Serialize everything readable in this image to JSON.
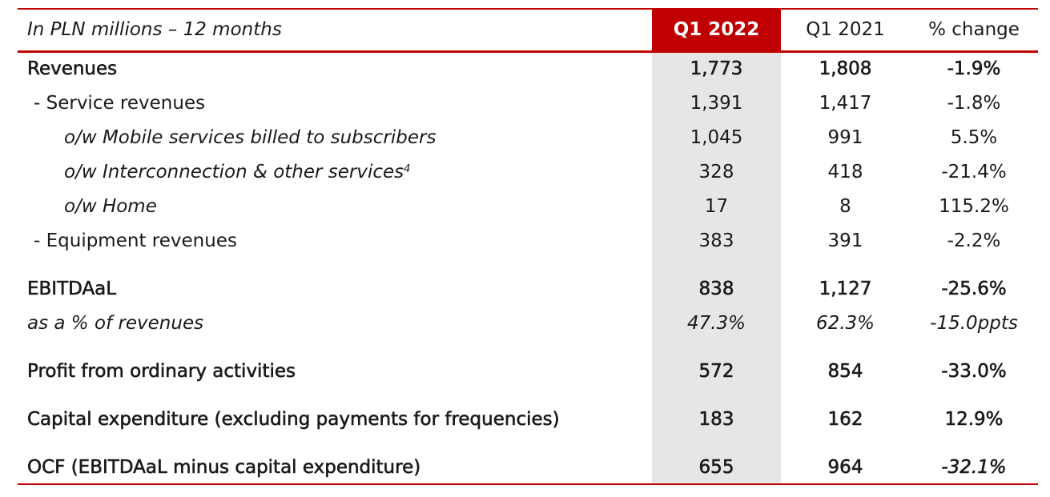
{
  "header": {
    "label": "In PLN millions – 12 months",
    "col1": "Q1 2022",
    "col2": "Q1 2021",
    "col3": "% change"
  },
  "rows": [
    {
      "label": "Revenues",
      "c1": "1,773",
      "c2": "1,808",
      "c3": "-1.9%"
    },
    {
      "label": "- Service revenues",
      "c1": "1,391",
      "c2": "1,417",
      "c3": "-1.8%"
    },
    {
      "label": "o/w Mobile services billed to subscribers",
      "c1": "1,045",
      "c2": "991",
      "c3": "5.5%"
    },
    {
      "label": "o/w Interconnection & other services",
      "sup": "4",
      "c1": "328",
      "c2": "418",
      "c3": "-21.4%"
    },
    {
      "label": "o/w Home",
      "c1": "17",
      "c2": "8",
      "c3": "115.2%"
    },
    {
      "label": "- Equipment revenues",
      "c1": "383",
      "c2": "391",
      "c3": "-2.2%"
    },
    {
      "label": "EBITDAaL",
      "c1": "838",
      "c2": "1,127",
      "c3": "-25.6%"
    },
    {
      "label": "as a % of revenues",
      "c1": "47.3%",
      "c2": "62.3%",
      "c3": "-15.0ppts"
    },
    {
      "label": "Profit from ordinary activities",
      "c1": "572",
      "c2": "854",
      "c3": "-33.0%"
    },
    {
      "label": "Capital expenditure (excluding payments for frequencies)",
      "c1": "183",
      "c2": "162",
      "c3": "12.9%"
    },
    {
      "label": "OCF (EBITDAaL minus capital expenditure)",
      "c1": "655",
      "c2": "964",
      "c3": "-32.1%"
    }
  ],
  "colors": {
    "accent": "#c00000",
    "shade": "#e6e6e6"
  }
}
